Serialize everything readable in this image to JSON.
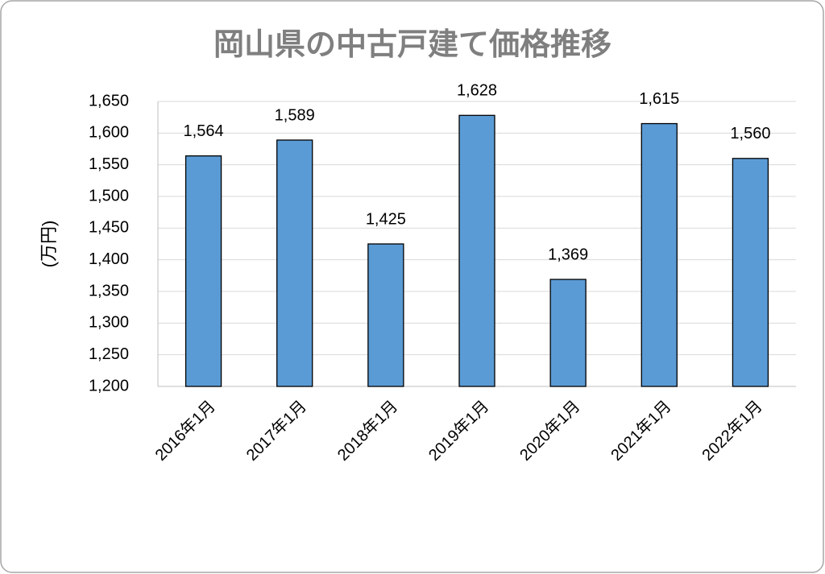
{
  "chart_data": {
    "type": "bar",
    "title": "岡山県の中古戸建て価格推移",
    "y_label": "(万円)",
    "categories": [
      "2016年1月",
      "2017年1月",
      "2018年1月",
      "2019年1月",
      "2020年1月",
      "2021年1月",
      "2022年1月"
    ],
    "values": [
      1564,
      1589,
      1425,
      1628,
      1369,
      1615,
      1560
    ],
    "value_labels": [
      "1,564",
      "1,589",
      "1,425",
      "1,628",
      "1,369",
      "1,615",
      "1,560"
    ],
    "color": "#5b9bd5",
    "ylim": [
      1200,
      1650
    ],
    "yticks": [
      {
        "value": 1200,
        "label": "1,200"
      },
      {
        "value": 1250,
        "label": "1,250"
      },
      {
        "value": 1300,
        "label": "1,300"
      },
      {
        "value": 1350,
        "label": "1,350"
      },
      {
        "value": 1400,
        "label": "1,400"
      },
      {
        "value": 1450,
        "label": "1,450"
      },
      {
        "value": 1500,
        "label": "1,500"
      },
      {
        "value": 1550,
        "label": "1,550"
      },
      {
        "value": 1600,
        "label": "1,600"
      },
      {
        "value": 1650,
        "label": "1,650"
      }
    ],
    "grid": true
  }
}
